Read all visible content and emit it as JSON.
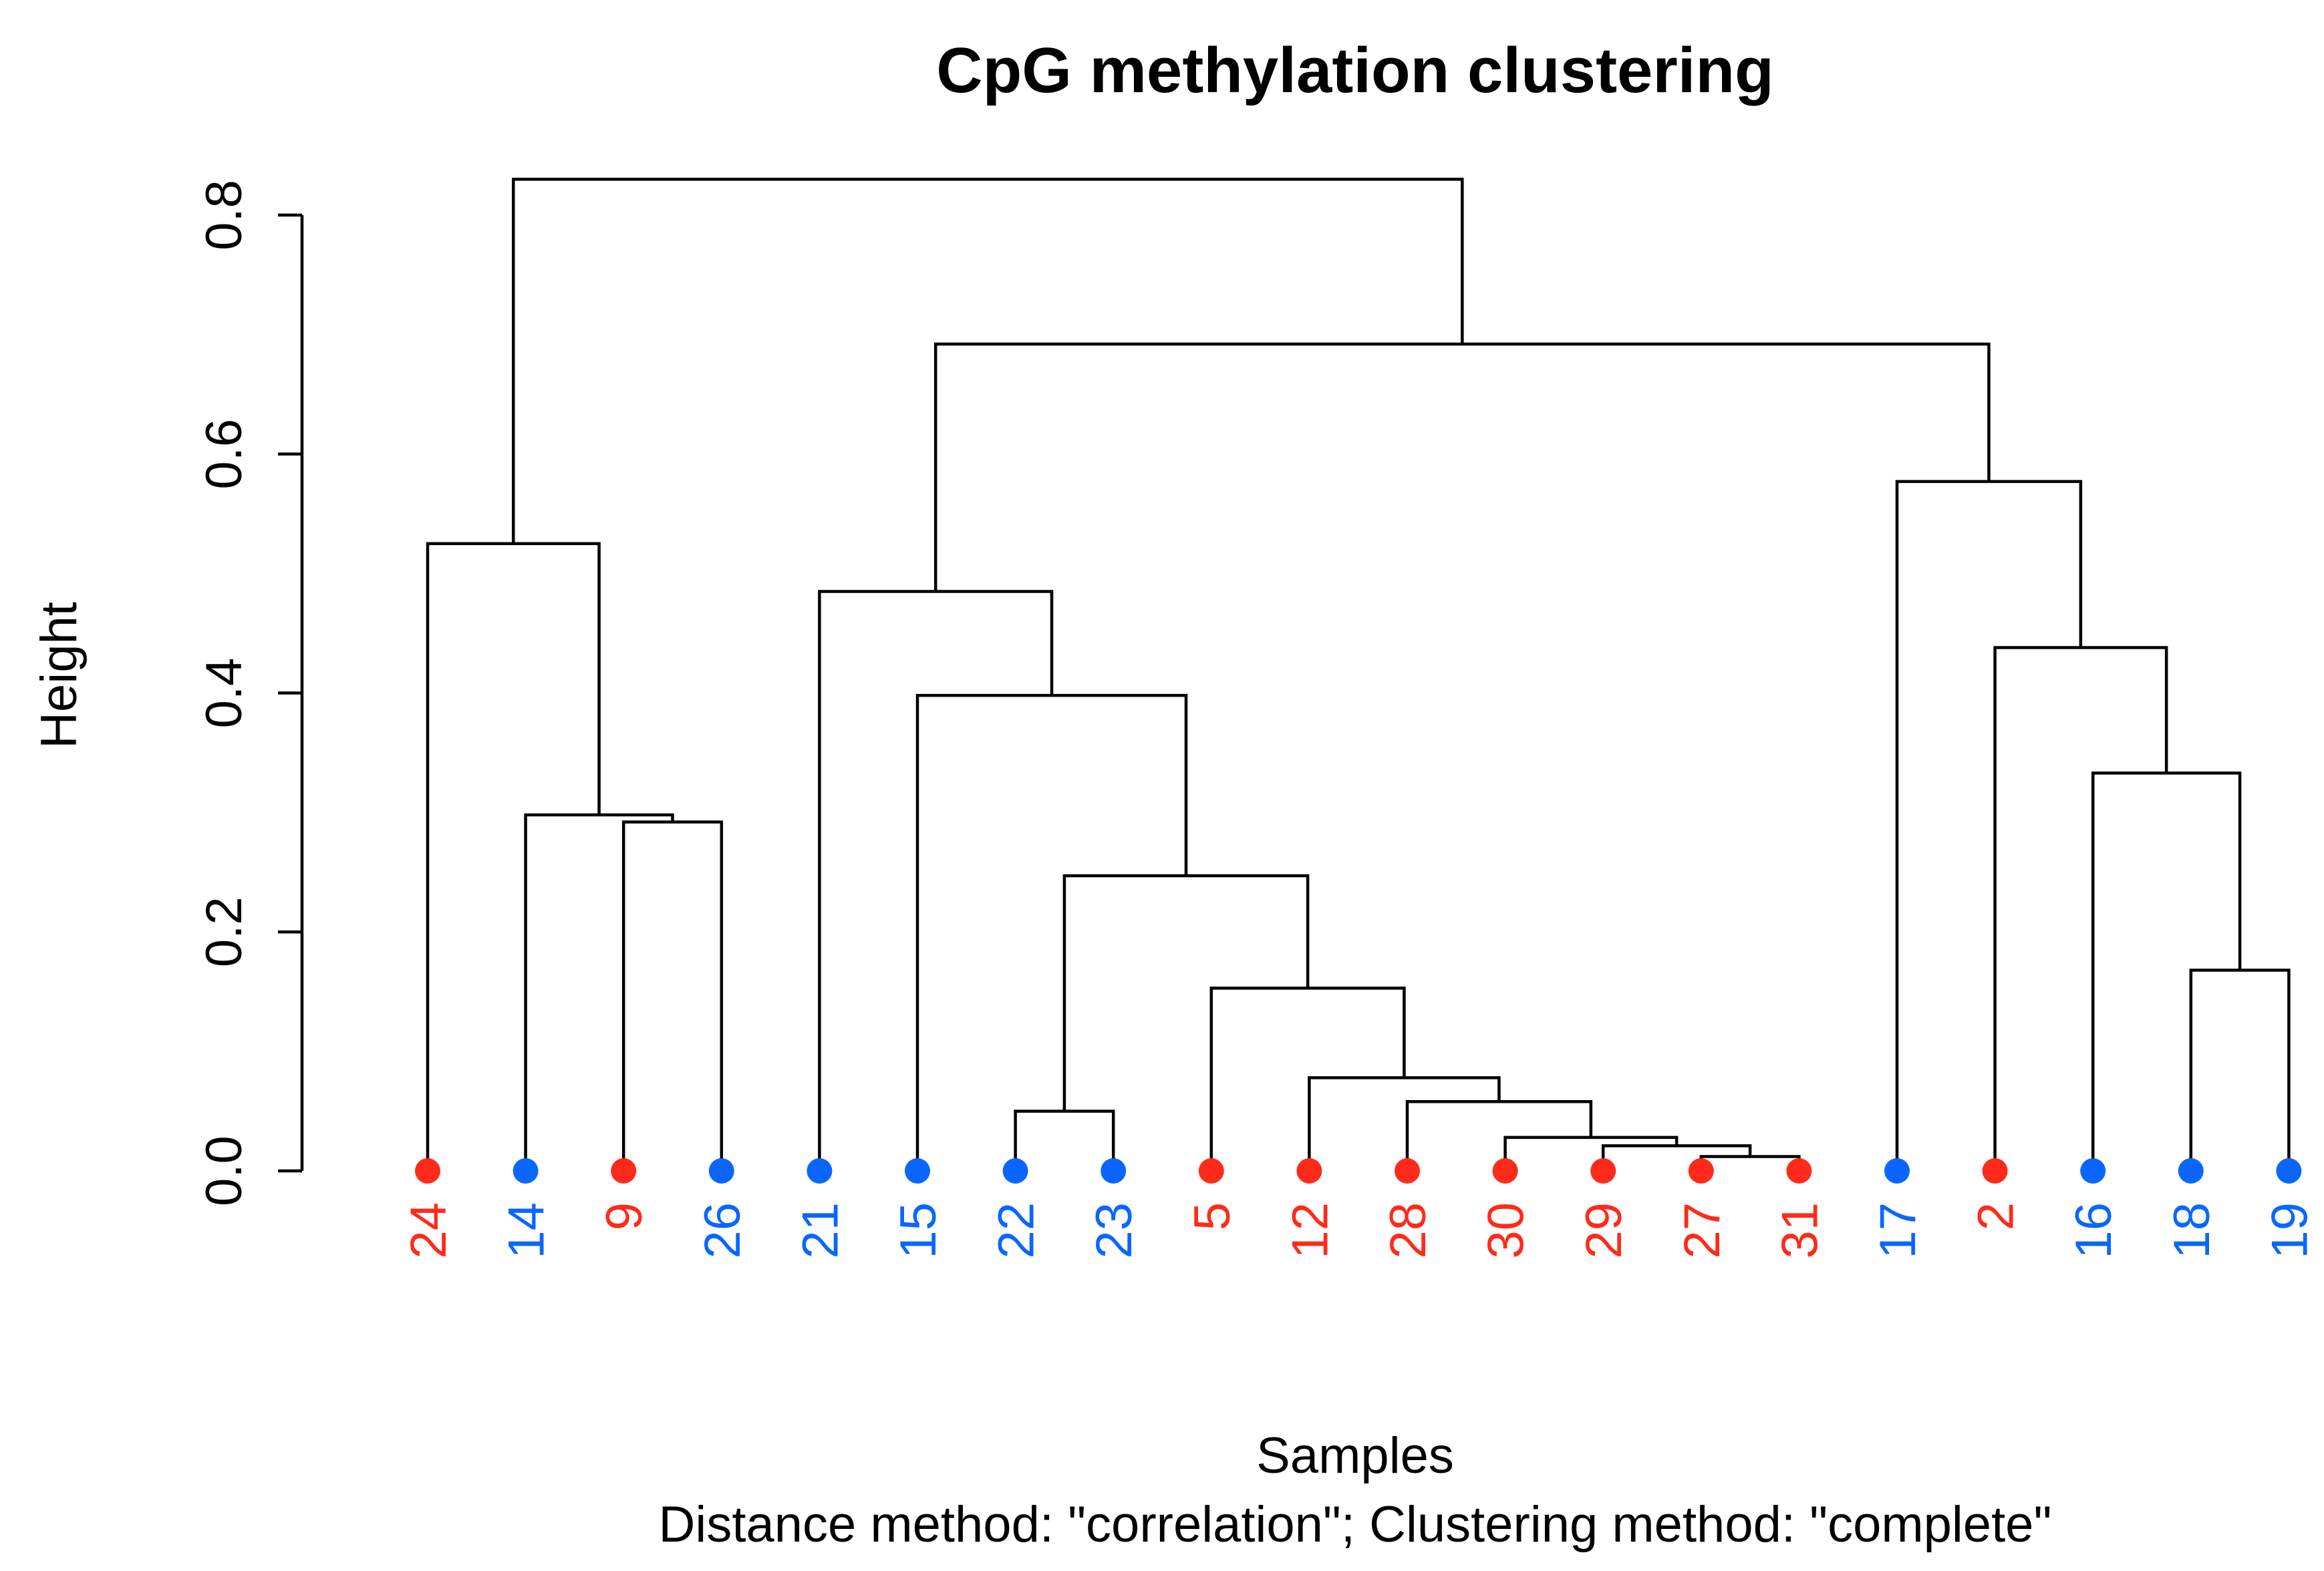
{
  "chart_data": {
    "type": "dendrogram",
    "title": "CpG methylation clustering",
    "xlabel": "Samples",
    "subtitle": "Distance method: \"correlation\"; Clustering method: \"complete\"",
    "ylabel": "Height",
    "ylim": [
      0,
      0.8
    ],
    "yticks": [
      "0.0",
      "0.2",
      "0.4",
      "0.6",
      "0.8"
    ],
    "group_colors": {
      "red": "#ff2a1a",
      "blue": "#0a66ff"
    },
    "leaves": [
      {
        "label": "24",
        "group": "red"
      },
      {
        "label": "14",
        "group": "blue"
      },
      {
        "label": "9",
        "group": "red"
      },
      {
        "label": "26",
        "group": "blue"
      },
      {
        "label": "21",
        "group": "blue"
      },
      {
        "label": "15",
        "group": "blue"
      },
      {
        "label": "22",
        "group": "blue"
      },
      {
        "label": "23",
        "group": "blue"
      },
      {
        "label": "5",
        "group": "red"
      },
      {
        "label": "12",
        "group": "red"
      },
      {
        "label": "28",
        "group": "red"
      },
      {
        "label": "30",
        "group": "red"
      },
      {
        "label": "29",
        "group": "red"
      },
      {
        "label": "27",
        "group": "red"
      },
      {
        "label": "31",
        "group": "red"
      },
      {
        "label": "17",
        "group": "blue"
      },
      {
        "label": "2",
        "group": "red"
      },
      {
        "label": "16",
        "group": "blue"
      },
      {
        "label": "18",
        "group": "blue"
      },
      {
        "label": "19",
        "group": "blue"
      }
    ],
    "merges": [
      {
        "id": "m1",
        "left": "L27",
        "right": "L31",
        "height": 0.012
      },
      {
        "id": "m2",
        "left": "L29",
        "right": "m1",
        "height": 0.021
      },
      {
        "id": "m3",
        "left": "L30",
        "right": "m2",
        "height": 0.028
      },
      {
        "id": "m4",
        "left": "L22",
        "right": "L23",
        "height": 0.05
      },
      {
        "id": "m5",
        "left": "L28",
        "right": "m3",
        "height": 0.058
      },
      {
        "id": "m6",
        "left": "L12",
        "right": "m5",
        "height": 0.078
      },
      {
        "id": "m7",
        "left": "L5",
        "right": "m6",
        "height": 0.153
      },
      {
        "id": "m8",
        "left": "L18",
        "right": "L19",
        "height": 0.168
      },
      {
        "id": "m9",
        "left": "m4",
        "right": "m7",
        "height": 0.247
      },
      {
        "id": "m10",
        "left": "L9",
        "right": "L26",
        "height": 0.292
      },
      {
        "id": "m11",
        "left": "L14",
        "right": "m10",
        "height": 0.298
      },
      {
        "id": "m12",
        "left": "L16",
        "right": "m8",
        "height": 0.333
      },
      {
        "id": "m13",
        "left": "L15",
        "right": "m9",
        "height": 0.398
      },
      {
        "id": "m14",
        "left": "L2",
        "right": "m12",
        "height": 0.438
      },
      {
        "id": "m15",
        "left": "L21",
        "right": "m13",
        "height": 0.485
      },
      {
        "id": "m16",
        "left": "L24",
        "right": "m11",
        "height": 0.525
      },
      {
        "id": "m17",
        "left": "L17",
        "right": "m14",
        "height": 0.577
      },
      {
        "id": "m18",
        "left": "m15",
        "right": "m17",
        "height": 0.692
      },
      {
        "id": "m19",
        "left": "m16",
        "right": "m18",
        "height": 0.83
      }
    ]
  }
}
